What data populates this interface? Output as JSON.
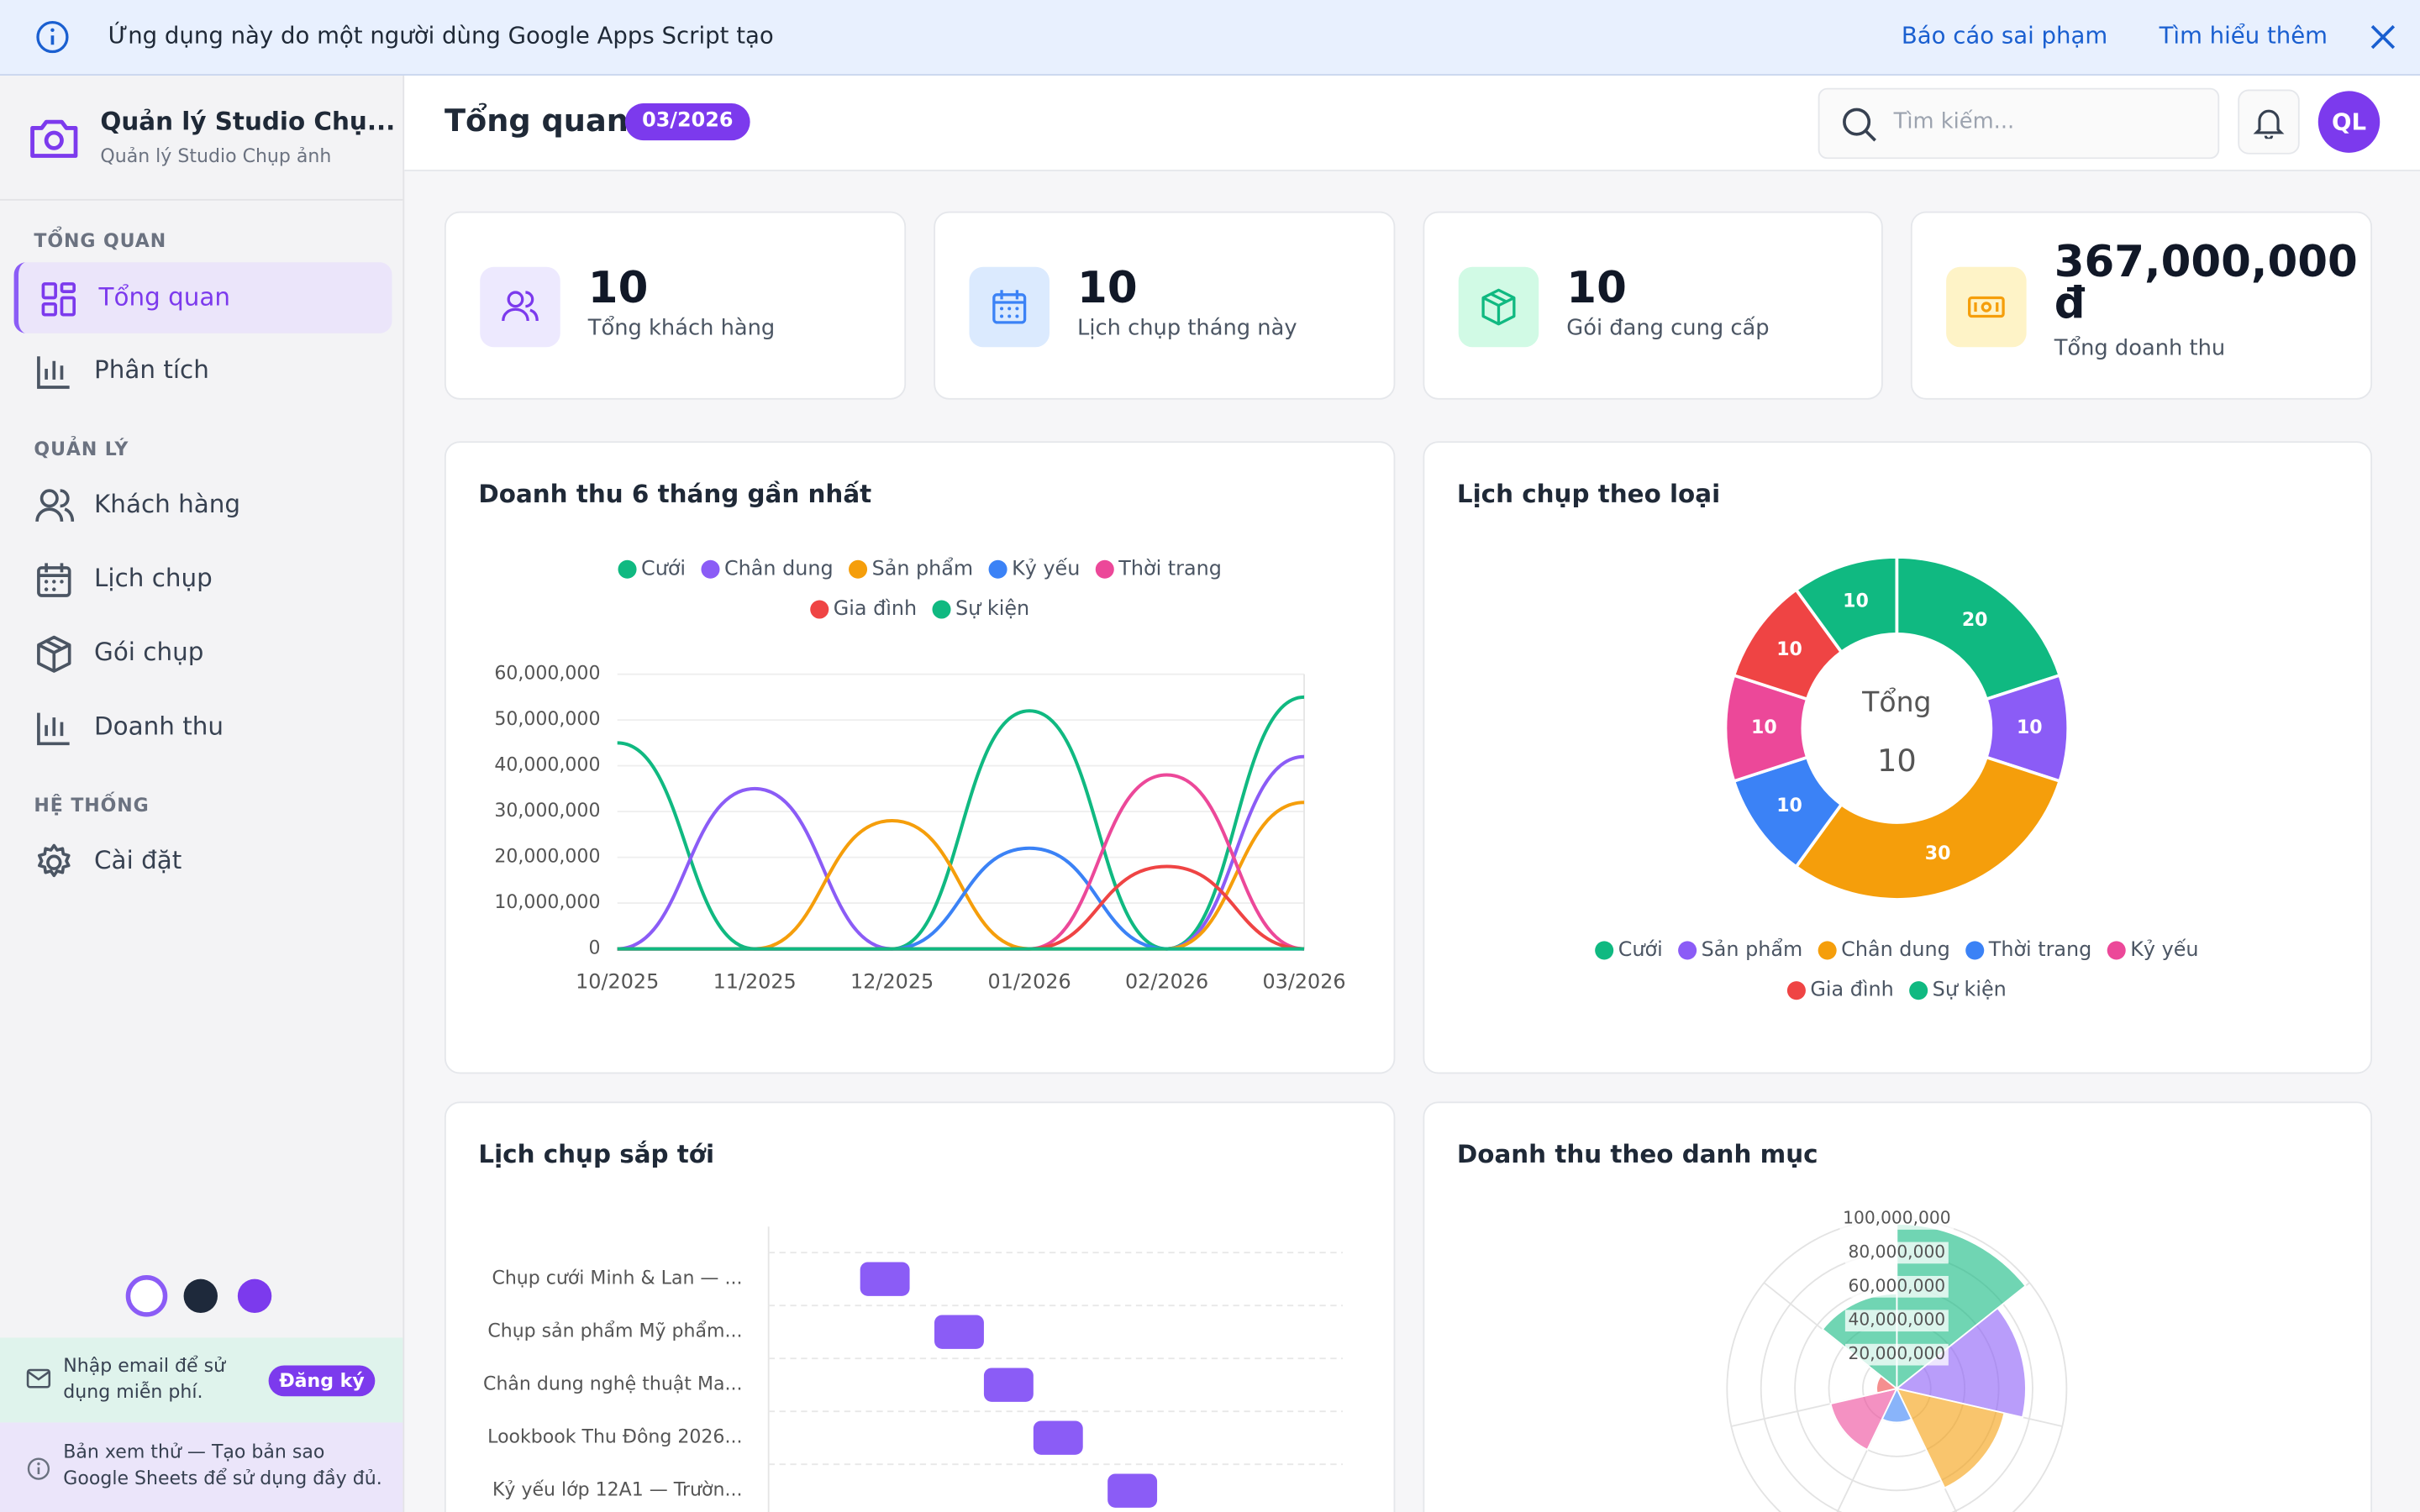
{
  "banner": {
    "text": "Ứng dụng này do một người dùng Google Apps Script tạo",
    "report": "Báo cáo sai phạm",
    "learn_more": "Tìm hiểu thêm"
  },
  "sidebar": {
    "app_title": "Quản lý Studio Chụ...",
    "app_subtitle": "Quản lý Studio Chụp ảnh",
    "sections": [
      {
        "title": "TỔNG QUAN",
        "items": [
          "Tổng quan",
          "Phân tích"
        ]
      },
      {
        "title": "QUẢN LÝ",
        "items": [
          "Khách hàng",
          "Lịch chụp",
          "Gói chụp",
          "Doanh thu"
        ]
      },
      {
        "title": "HỆ THỐNG",
        "items": [
          "Cài đặt"
        ]
      }
    ],
    "signup": {
      "text": "Nhập email để sử dụng miễn phí.",
      "button": "Đăng ký"
    },
    "preview_note": "Bản xem thử — Tạo bản sao Google Sheets để sử dụng đầy đủ."
  },
  "header": {
    "title": "Tổng quan",
    "badge": "03/2026",
    "search_placeholder": "Tìm kiếm...",
    "avatar": "QL"
  },
  "stats": [
    {
      "value": "10",
      "label": "Tổng khách hàng"
    },
    {
      "value": "10",
      "label": "Lịch chụp tháng này"
    },
    {
      "value": "10",
      "label": "Gói đang cung cấp"
    },
    {
      "value": "367,000,000 đ",
      "label": "Tổng doanh thu"
    }
  ],
  "chart_data": [
    {
      "type": "line",
      "title": "Doanh thu 6 tháng gần nhất",
      "categories": [
        "10/2025",
        "11/2025",
        "12/2025",
        "01/2026",
        "02/2026",
        "03/2026"
      ],
      "series": [
        {
          "name": "Cưới",
          "color": "#10b981",
          "values": [
            45000000,
            0,
            0,
            52000000,
            0,
            55000000
          ]
        },
        {
          "name": "Chân dung",
          "color": "#8b5cf6",
          "values": [
            0,
            35000000,
            0,
            0,
            0,
            42000000
          ]
        },
        {
          "name": "Sản phẩm",
          "color": "#f59e0b",
          "values": [
            0,
            0,
            28000000,
            0,
            0,
            32000000
          ]
        },
        {
          "name": "Kỷ yếu",
          "color": "#3b82f6",
          "values": [
            0,
            0,
            0,
            22000000,
            0,
            0
          ]
        },
        {
          "name": "Thời trang",
          "color": "#ec4899",
          "values": [
            0,
            0,
            0,
            0,
            38000000,
            0
          ]
        },
        {
          "name": "Gia đình",
          "color": "#ef4444",
          "values": [
            0,
            0,
            0,
            0,
            18000000,
            0
          ]
        },
        {
          "name": "Sự kiện",
          "color": "#10b981",
          "values": [
            0,
            0,
            0,
            0,
            0,
            0
          ]
        }
      ],
      "ylim": [
        0,
        60000000
      ],
      "yticks": [
        0,
        {
          "value": 10000000,
          "label": "10,000,000"
        },
        {
          "value": 20000000,
          "label": "20,000,000"
        },
        {
          "value": 30000000,
          "label": "30,000,000"
        },
        {
          "value": 40000000,
          "label": "40,000,000"
        },
        {
          "value": 50000000,
          "label": "50,000,000"
        },
        {
          "value": 60000000,
          "label": "60,000,000"
        }
      ],
      "grid": true
    },
    {
      "type": "doughnut",
      "title": "Lịch chụp theo loại",
      "categories": [
        "Cưới",
        "Sản phẩm",
        "Chân dung",
        "Thời trang",
        "Kỷ yếu",
        "Gia đình",
        "Sự kiện"
      ],
      "values": [
        20,
        10,
        30,
        10,
        10,
        10,
        10
      ],
      "colors": [
        "#10b981",
        "#8b5cf6",
        "#f59e0b",
        "#3b82f6",
        "#ec4899",
        "#ef4444",
        "#10b981"
      ],
      "center_label": "Tổng",
      "center_value": 10
    },
    {
      "type": "gantt",
      "title": "Lịch chụp sắp tới",
      "categories": [
        "Chụp cưới Minh & Lan — ...",
        "Chụp sản phẩm Mỹ phẩm...",
        "Chân dung nghệ thuật Ma...",
        "Lookbook Thu Đông 2026...",
        "Kỷ yếu lớp 12A1 — Trườn..."
      ],
      "ranges": [
        [
          1.85,
          2.85
        ],
        [
          3.35,
          4.35
        ],
        [
          4.35,
          5.35
        ],
        [
          5.35,
          6.35
        ],
        [
          6.85,
          7.85
        ]
      ],
      "xlim": [
        0,
        11.6
      ],
      "color": "#8b5cf6",
      "grid": true
    },
    {
      "type": "polarArea",
      "title": "Doanh thu theo danh mục",
      "values": [
        97000000,
        76000000,
        65000000,
        20000000,
        40000000,
        12000000,
        56000000
      ],
      "colors": [
        "#10b981",
        "#8b5cf6",
        "#f59e0b",
        "#3b82f6",
        "#ec4899",
        "#ef4444",
        "#10b981"
      ],
      "rlim": [
        0,
        100000000
      ],
      "rticks": [
        {
          "value": 20000000,
          "label": "20,000,000"
        },
        {
          "value": 40000000,
          "label": "40,000,000"
        },
        {
          "value": 60000000,
          "label": "60,000,000"
        },
        {
          "value": 80000000,
          "label": "80,000,000"
        },
        {
          "value": 100000000,
          "label": "100,000,000"
        }
      ]
    }
  ]
}
